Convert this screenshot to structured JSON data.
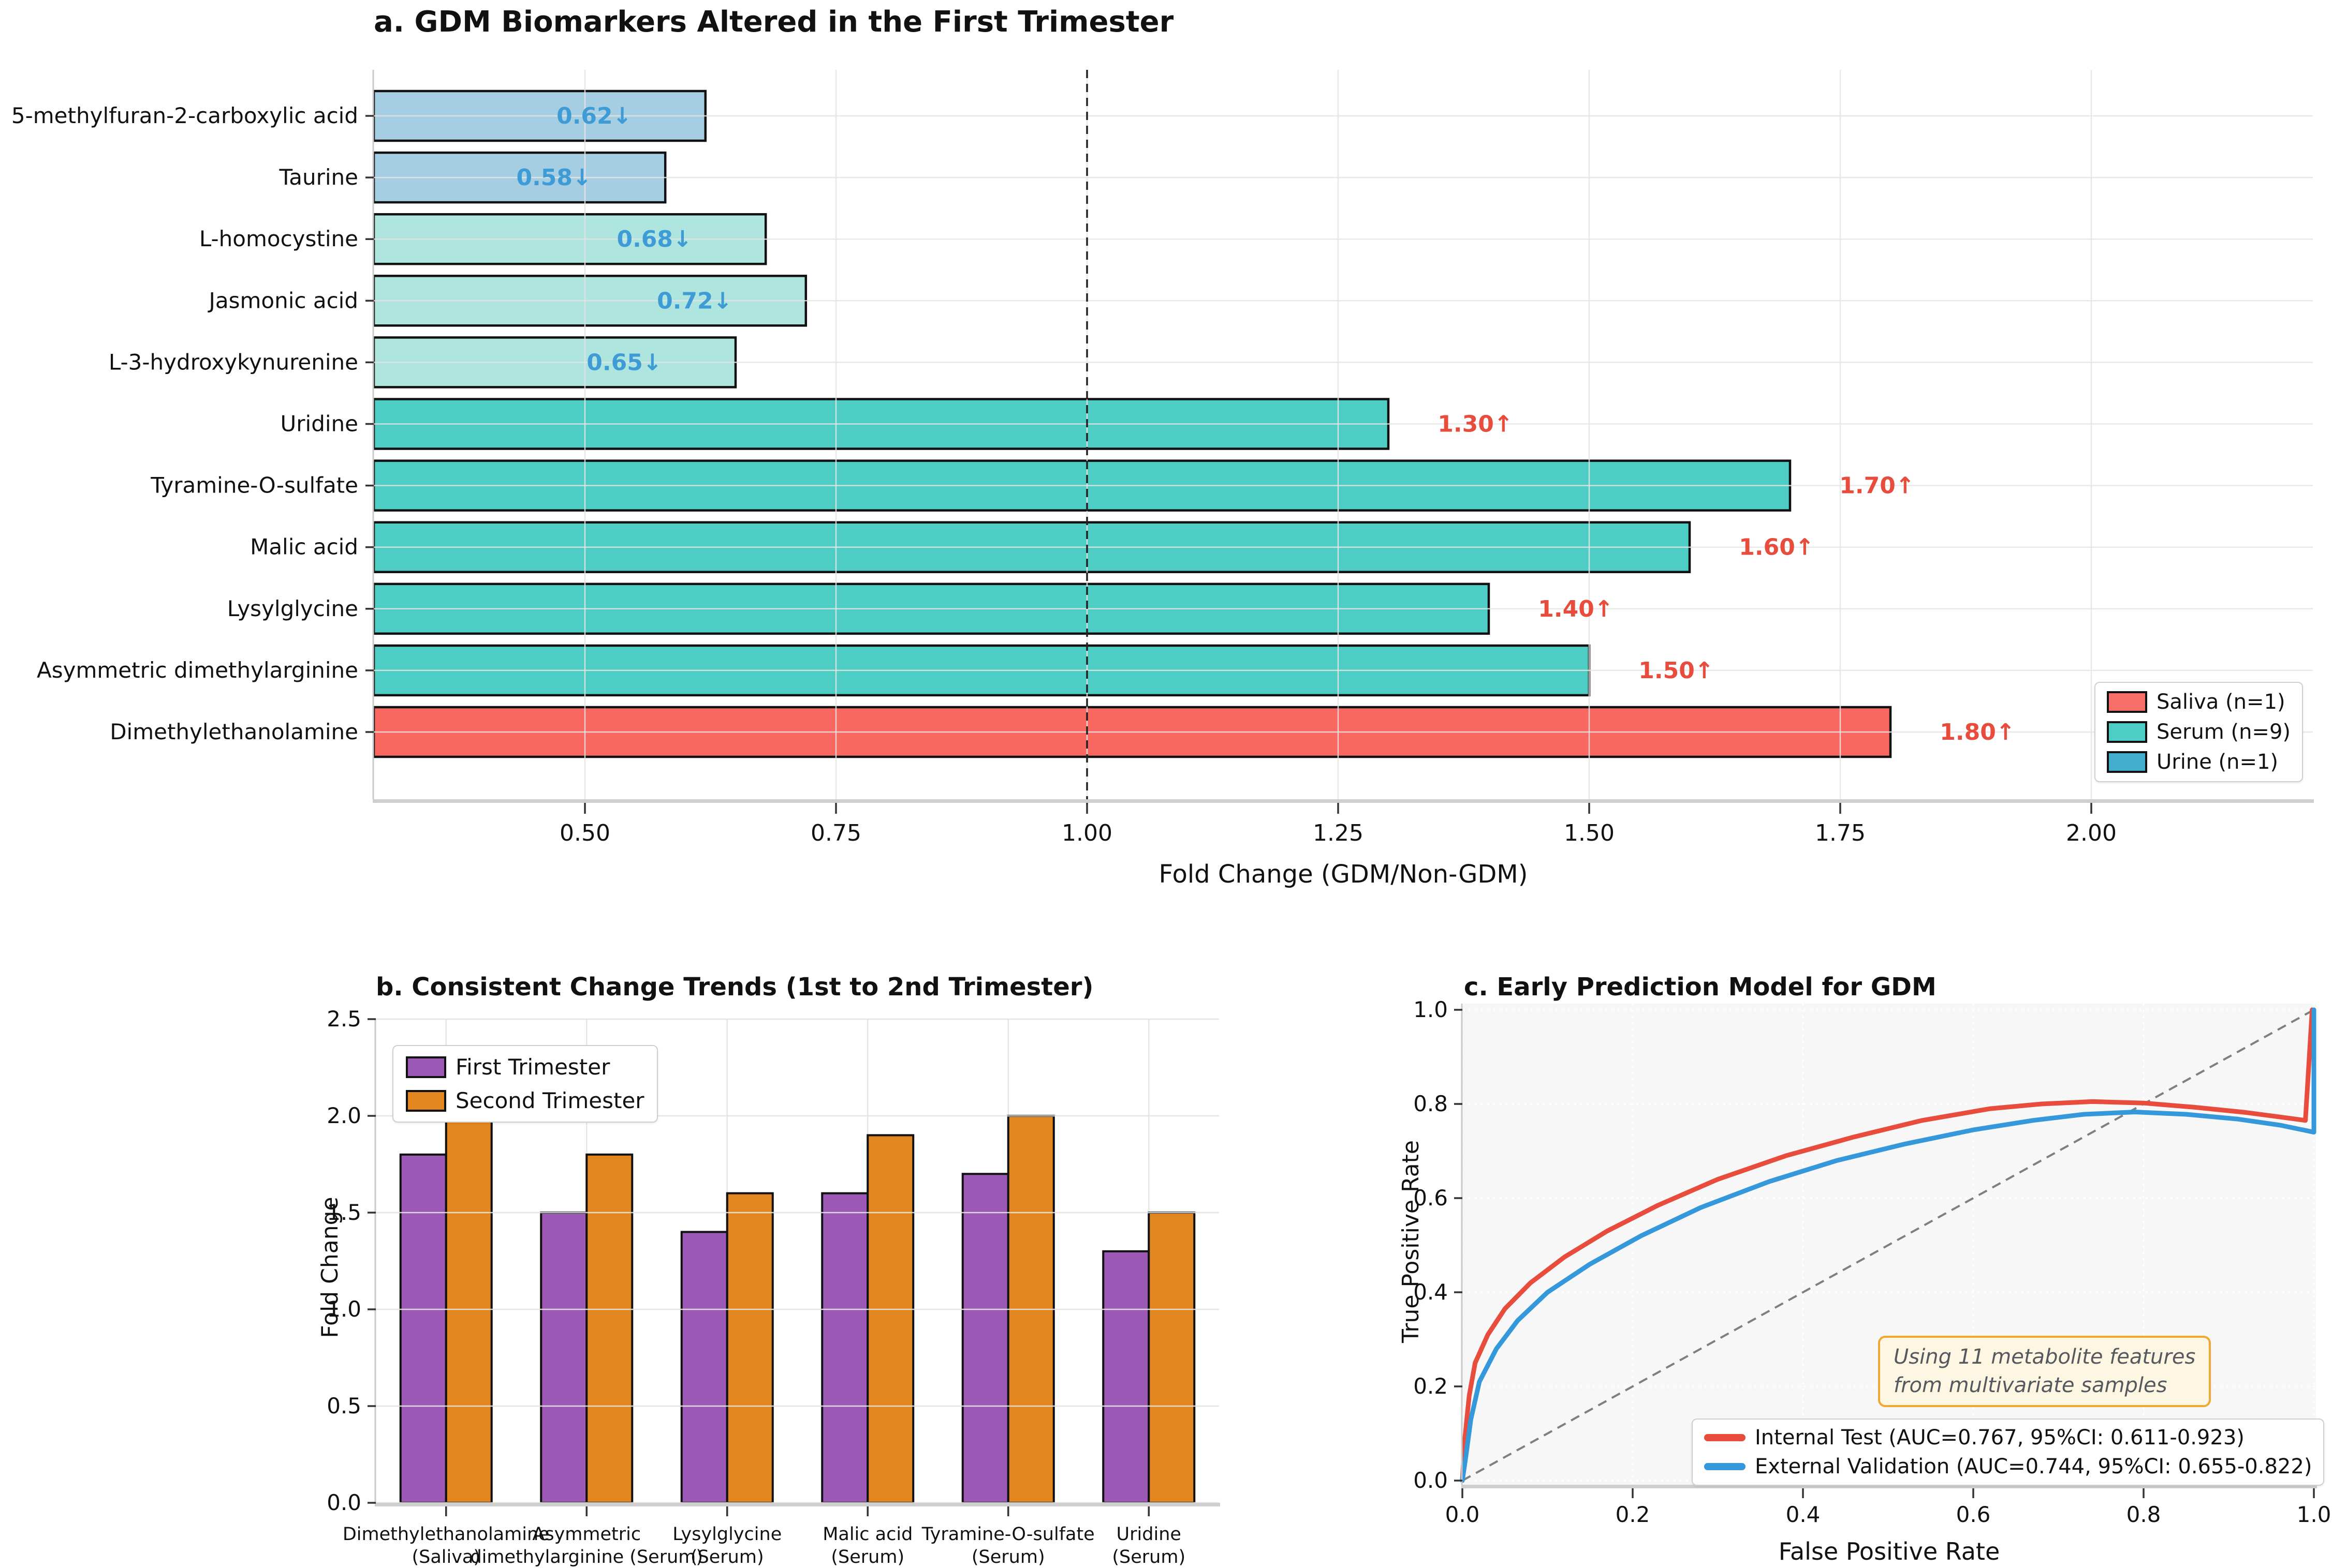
{
  "chart_data": [
    {
      "id": "a",
      "type": "bar",
      "orientation": "horizontal",
      "title": "a. GDM Biomarkers Altered in the First Trimester",
      "xlabel": "Fold Change (GDM/Non-GDM)",
      "categories": [
        "5-methylfuran-2-carboxylic acid",
        "Taurine",
        "L-homocystine",
        "Jasmonic acid",
        "L-3-hydroxykynurenine",
        "Uridine",
        "Tyramine-O-sulfate",
        "Malic acid",
        "Lysylglycine",
        "Asymmetric dimethylarginine",
        "Dimethylethanolamine"
      ],
      "values": [
        0.62,
        0.58,
        0.68,
        0.72,
        0.65,
        1.3,
        1.7,
        1.6,
        1.4,
        1.5,
        1.8
      ],
      "bar_labels": [
        "0.62↓",
        "0.58↓",
        "0.68↓",
        "0.72↓",
        "0.65↓",
        "1.30↑",
        "1.70↑",
        "1.60↑",
        "1.40↑",
        "1.50↑",
        "1.80↑"
      ],
      "bar_colors": [
        "#A6CEE3",
        "#A6CEE3",
        "#AEE5DE",
        "#AEE5DE",
        "#AEE5DE",
        "#4ECDC4",
        "#4ECDC4",
        "#4ECDC4",
        "#4ECDC4",
        "#4ECDC4",
        "#F86861"
      ],
      "label_color_down": "#3E9BD5",
      "label_color_up": "#E74C3C",
      "xlim": [
        0.2897,
        2.221
      ],
      "x_ticks": [
        0.5,
        0.75,
        1.0,
        1.25,
        1.5,
        1.75,
        2.0
      ],
      "x_tick_labels": [
        "0.50",
        "0.75",
        "1.00",
        "1.25",
        "1.50",
        "1.75",
        "2.00"
      ],
      "ref_line": 1.0,
      "legend": [
        {
          "label": "Saliva (n=1)",
          "color": "#F76F68"
        },
        {
          "label": "Serum (n=9)",
          "color": "#4ECDC4"
        },
        {
          "label": "Urine (n=1)",
          "color": "#41AECC"
        }
      ]
    },
    {
      "id": "b",
      "type": "bar",
      "orientation": "vertical",
      "title": "b. Consistent Change Trends (1st to 2nd Trimester)",
      "ylabel": "Fold Change",
      "ylim": [
        0,
        2.5
      ],
      "y_ticks": [
        0.0,
        0.5,
        1.0,
        1.5,
        2.0,
        2.5
      ],
      "y_tick_labels": [
        "0.0",
        "0.5",
        "1.0",
        "1.5",
        "2.0",
        "2.5"
      ],
      "categories": [
        [
          "Dimethylethanolamine",
          "(Saliva)"
        ],
        [
          "Asymmetric",
          "dimethylarginine (Serum)"
        ],
        [
          "Lysylglycine",
          "(Serum)"
        ],
        [
          "Malic acid",
          "(Serum)"
        ],
        [
          "Tyramine-O-sulfate",
          "(Serum)"
        ],
        [
          "Uridine",
          "(Serum)"
        ]
      ],
      "series": [
        {
          "name": "First Trimester",
          "color": "#9C59B6",
          "values": [
            1.8,
            1.5,
            1.4,
            1.6,
            1.7,
            1.3
          ]
        },
        {
          "name": "Second Trimester",
          "color": "#E2861F",
          "values": [
            2.1,
            1.8,
            1.6,
            1.9,
            2.0,
            1.5
          ]
        }
      ]
    },
    {
      "id": "c",
      "type": "line",
      "title": "c. Early Prediction Model for GDM",
      "xlabel": "False Positive Rate",
      "ylabel": "True Positive Rate",
      "xlim": [
        0,
        1
      ],
      "ylim": [
        0,
        1
      ],
      "x_ticks": [
        0.0,
        0.2,
        0.4,
        0.6,
        0.8,
        1.0
      ],
      "x_tick_labels": [
        "0.0",
        "0.2",
        "0.4",
        "0.6",
        "0.8",
        "1.0"
      ],
      "y_ticks": [
        0.0,
        0.2,
        0.4,
        0.6,
        0.8,
        1.0
      ],
      "y_tick_labels": [
        "0.0",
        "0.2",
        "0.4",
        "0.6",
        "0.8",
        "1.0"
      ],
      "diagonal_reference": true,
      "annotation": {
        "line1": "Using 11 metabolite features",
        "line2": "from multivariate samples"
      },
      "series": [
        {
          "name": "Internal Test (AUC=0.767, 95%CI: 0.611-0.923)",
          "color": "#E74C3C",
          "points": [
            [
              0,
              0
            ],
            [
              0.003,
              0.09
            ],
            [
              0.008,
              0.18
            ],
            [
              0.015,
              0.25
            ],
            [
              0.03,
              0.31
            ],
            [
              0.05,
              0.365
            ],
            [
              0.08,
              0.42
            ],
            [
              0.12,
              0.475
            ],
            [
              0.17,
              0.53
            ],
            [
              0.23,
              0.585
            ],
            [
              0.3,
              0.64
            ],
            [
              0.38,
              0.69
            ],
            [
              0.46,
              0.73
            ],
            [
              0.54,
              0.765
            ],
            [
              0.62,
              0.79
            ],
            [
              0.68,
              0.8
            ],
            [
              0.74,
              0.805
            ],
            [
              0.8,
              0.802
            ],
            [
              0.86,
              0.793
            ],
            [
              0.92,
              0.782
            ],
            [
              0.97,
              0.77
            ],
            [
              0.99,
              0.765
            ],
            [
              0.998,
              1.0
            ]
          ]
        },
        {
          "name": "External Validation (AUC=0.744, 95%CI: 0.655-0.822)",
          "color": "#3498DB",
          "points": [
            [
              0,
              0
            ],
            [
              0.004,
              0.05
            ],
            [
              0.01,
              0.13
            ],
            [
              0.02,
              0.21
            ],
            [
              0.04,
              0.28
            ],
            [
              0.065,
              0.34
            ],
            [
              0.1,
              0.4
            ],
            [
              0.15,
              0.46
            ],
            [
              0.21,
              0.52
            ],
            [
              0.28,
              0.58
            ],
            [
              0.36,
              0.635
            ],
            [
              0.44,
              0.68
            ],
            [
              0.52,
              0.715
            ],
            [
              0.6,
              0.745
            ],
            [
              0.67,
              0.765
            ],
            [
              0.73,
              0.778
            ],
            [
              0.79,
              0.783
            ],
            [
              0.85,
              0.778
            ],
            [
              0.91,
              0.768
            ],
            [
              0.96,
              0.755
            ],
            [
              0.995,
              0.742
            ],
            [
              1.0,
              0.74
            ],
            [
              1.0,
              1.0
            ]
          ]
        }
      ]
    }
  ]
}
